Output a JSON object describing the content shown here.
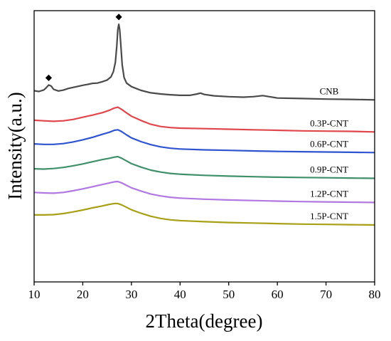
{
  "chart_data": {
    "type": "line",
    "title": "",
    "xlabel": "2Theta(degree)",
    "ylabel": "Intensity(a.u.)",
    "xlim": [
      10,
      80
    ],
    "ylim": [
      0,
      100
    ],
    "xticks": [
      "10",
      "20",
      "30",
      "40",
      "50",
      "60",
      "70",
      "80"
    ],
    "yticks_shown": false,
    "grid": false,
    "legend": "inline labels at right end of each curve",
    "peak_marker": "◆",
    "series": [
      {
        "name": "CNB",
        "color": "#4a4a4a",
        "points": [
          [
            10,
            70.5
          ],
          [
            11,
            70.2
          ],
          [
            12,
            70.8
          ],
          [
            12.5,
            71.6
          ],
          [
            13,
            72.6
          ],
          [
            13.5,
            72.2
          ],
          [
            14,
            71.0
          ],
          [
            15,
            70.4
          ],
          [
            16,
            70.7
          ],
          [
            17,
            71.3
          ],
          [
            18,
            71.7
          ],
          [
            19,
            72.1
          ],
          [
            20,
            72.5
          ],
          [
            21,
            72.8
          ],
          [
            22,
            73.2
          ],
          [
            23,
            73.3
          ],
          [
            24,
            73.8
          ],
          [
            25,
            74.4
          ],
          [
            25.8,
            75.6
          ],
          [
            26.3,
            77.5
          ],
          [
            26.7,
            81
          ],
          [
            27.0,
            87
          ],
          [
            27.2,
            93
          ],
          [
            27.4,
            95
          ],
          [
            27.6,
            93
          ],
          [
            27.8,
            88
          ],
          [
            28.1,
            80
          ],
          [
            28.5,
            75.3
          ],
          [
            29,
            73.3
          ],
          [
            30,
            72
          ],
          [
            32,
            70.6
          ],
          [
            34,
            69.7
          ],
          [
            36,
            69.3
          ],
          [
            38,
            69.0
          ],
          [
            40,
            68.8
          ],
          [
            42,
            68.8
          ],
          [
            43.5,
            69.3
          ],
          [
            44.2,
            69.6
          ],
          [
            45,
            69.1
          ],
          [
            47,
            68.6
          ],
          [
            50,
            68.3
          ],
          [
            53,
            68.1
          ],
          [
            55,
            68.3
          ],
          [
            57,
            68.7
          ],
          [
            58,
            68.4
          ],
          [
            60,
            67.8
          ],
          [
            65,
            67.6
          ],
          [
            70,
            67.4
          ],
          [
            75,
            67.3
          ],
          [
            80,
            67.1
          ]
        ],
        "peaks": [
          {
            "x": 13.0,
            "y": 72.6
          },
          {
            "x": 27.4,
            "y": 95
          }
        ]
      },
      {
        "name": "0.3P-CNT",
        "color": "#e0474c",
        "points": [
          [
            10,
            59.6
          ],
          [
            12,
            59.4
          ],
          [
            14,
            59.2
          ],
          [
            16,
            59.4
          ],
          [
            18,
            59.9
          ],
          [
            20,
            60.7
          ],
          [
            22,
            61.5
          ],
          [
            24,
            62.4
          ],
          [
            25.5,
            63.3
          ],
          [
            26.5,
            64.1
          ],
          [
            27.2,
            64.4
          ],
          [
            28,
            63.6
          ],
          [
            29,
            62.3
          ],
          [
            30,
            61.1
          ],
          [
            32,
            59.5
          ],
          [
            34,
            58.1
          ],
          [
            36,
            57.3
          ],
          [
            38,
            56.9
          ],
          [
            40,
            56.7
          ],
          [
            45,
            56.5
          ],
          [
            50,
            56.3
          ],
          [
            55,
            56.1
          ],
          [
            60,
            55.9
          ],
          [
            65,
            55.7
          ],
          [
            70,
            55.6
          ],
          [
            75,
            55.5
          ],
          [
            80,
            55.3
          ]
        ]
      },
      {
        "name": "0.6P-CNT",
        "color": "#2f54d0",
        "points": [
          [
            10,
            50.9
          ],
          [
            12,
            50.7
          ],
          [
            14,
            50.7
          ],
          [
            16,
            51.0
          ],
          [
            18,
            51.6
          ],
          [
            20,
            52.4
          ],
          [
            22,
            53.3
          ],
          [
            24,
            54.4
          ],
          [
            25.5,
            55.2
          ],
          [
            26.5,
            55.9
          ],
          [
            27.2,
            56.1
          ],
          [
            28,
            55.4
          ],
          [
            29,
            54.2
          ],
          [
            30,
            53.1
          ],
          [
            32,
            51.7
          ],
          [
            34,
            50.6
          ],
          [
            36,
            49.8
          ],
          [
            38,
            49.3
          ],
          [
            40,
            49.0
          ],
          [
            45,
            48.7
          ],
          [
            50,
            48.5
          ],
          [
            55,
            48.3
          ],
          [
            60,
            48.1
          ],
          [
            65,
            48.0
          ],
          [
            70,
            47.9
          ],
          [
            75,
            47.8
          ],
          [
            80,
            47.7
          ]
        ]
      },
      {
        "name": "0.9P-CNT",
        "color": "#3f8f6b",
        "points": [
          [
            10,
            41.7
          ],
          [
            12,
            41.6
          ],
          [
            14,
            41.8
          ],
          [
            16,
            42.2
          ],
          [
            18,
            42.8
          ],
          [
            20,
            43.5
          ],
          [
            22,
            44.3
          ],
          [
            24,
            45.1
          ],
          [
            25.5,
            45.6
          ],
          [
            26.5,
            46.0
          ],
          [
            27.2,
            46.2
          ],
          [
            28,
            45.6
          ],
          [
            29,
            44.6
          ],
          [
            30,
            43.6
          ],
          [
            32,
            42.3
          ],
          [
            34,
            41.2
          ],
          [
            36,
            40.5
          ],
          [
            38,
            40.0
          ],
          [
            40,
            39.7
          ],
          [
            45,
            39.3
          ],
          [
            50,
            39.0
          ],
          [
            55,
            38.8
          ],
          [
            60,
            38.6
          ],
          [
            65,
            38.5
          ],
          [
            70,
            38.4
          ],
          [
            75,
            38.3
          ],
          [
            80,
            38.2
          ]
        ]
      },
      {
        "name": "1.2P-CNT",
        "color": "#b078e0",
        "points": [
          [
            10,
            33.0
          ],
          [
            12,
            32.8
          ],
          [
            14,
            32.7
          ],
          [
            16,
            33.0
          ],
          [
            18,
            33.6
          ],
          [
            20,
            34.3
          ],
          [
            22,
            35.1
          ],
          [
            24,
            35.9
          ],
          [
            25.5,
            36.5
          ],
          [
            26.5,
            36.9
          ],
          [
            27.2,
            37.0
          ],
          [
            28,
            36.5
          ],
          [
            29,
            35.6
          ],
          [
            30,
            34.7
          ],
          [
            32,
            33.5
          ],
          [
            34,
            32.4
          ],
          [
            36,
            31.7
          ],
          [
            38,
            31.2
          ],
          [
            40,
            30.9
          ],
          [
            45,
            30.5
          ],
          [
            50,
            30.2
          ],
          [
            55,
            30.0
          ],
          [
            60,
            29.8
          ],
          [
            65,
            29.6
          ],
          [
            70,
            29.5
          ],
          [
            75,
            29.4
          ],
          [
            80,
            29.3
          ]
        ]
      },
      {
        "name": "1.5P-CNT",
        "color": "#a8a016",
        "points": [
          [
            10,
            24.7
          ],
          [
            12,
            24.7
          ],
          [
            14,
            24.8
          ],
          [
            16,
            25.2
          ],
          [
            18,
            25.8
          ],
          [
            20,
            26.5
          ],
          [
            22,
            27.3
          ],
          [
            24,
            28.0
          ],
          [
            25.5,
            28.6
          ],
          [
            26.5,
            28.9
          ],
          [
            27.2,
            28.9
          ],
          [
            28,
            28.4
          ],
          [
            29,
            27.5
          ],
          [
            30,
            26.6
          ],
          [
            32,
            25.3
          ],
          [
            34,
            24.2
          ],
          [
            36,
            23.4
          ],
          [
            38,
            22.9
          ],
          [
            40,
            22.6
          ],
          [
            45,
            22.2
          ],
          [
            50,
            21.9
          ],
          [
            55,
            21.7
          ],
          [
            60,
            21.5
          ],
          [
            65,
            21.3
          ],
          [
            70,
            21.2
          ],
          [
            75,
            21.1
          ],
          [
            80,
            21.0
          ]
        ]
      }
    ]
  }
}
